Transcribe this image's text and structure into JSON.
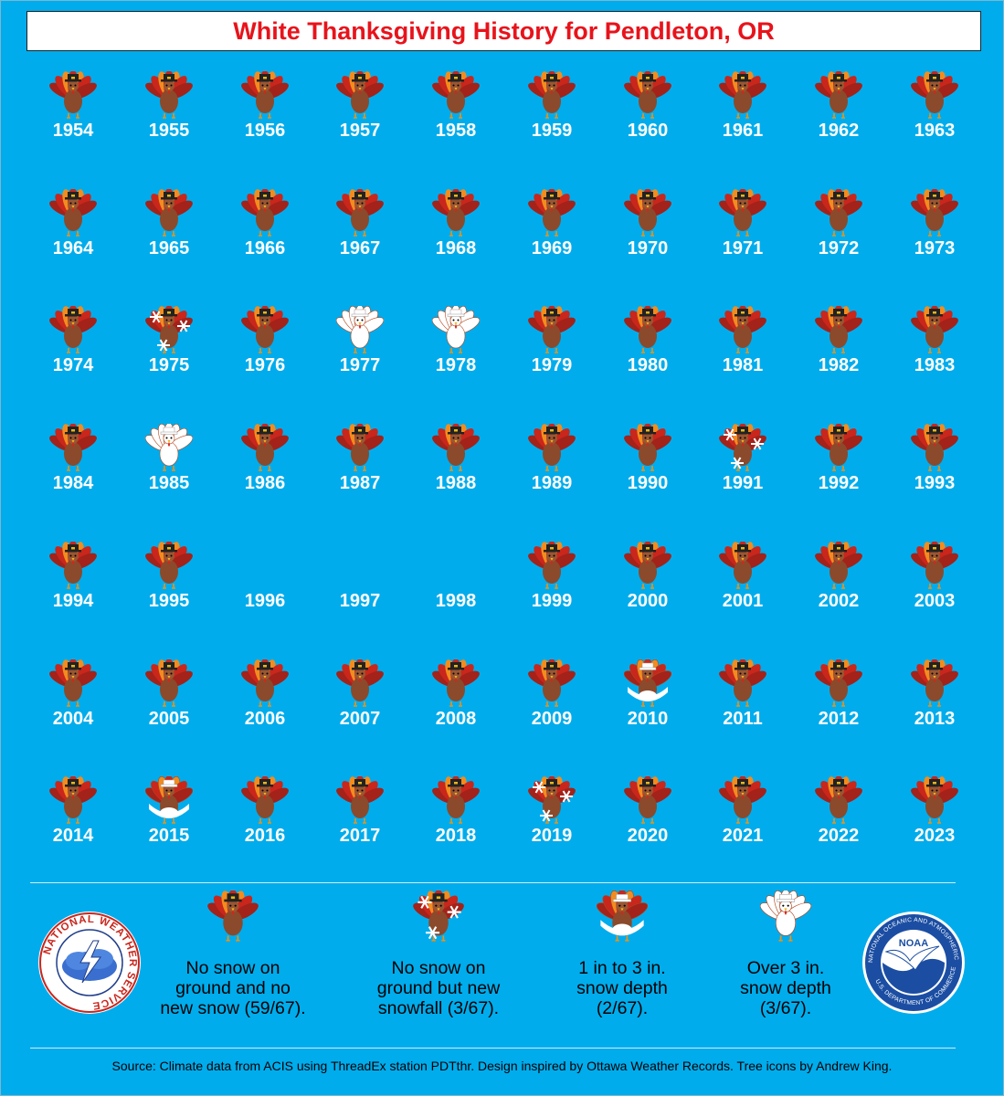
{
  "title": "White Thanksgiving History for Pendleton, OR",
  "colors": {
    "background": "#00acec",
    "title": "#e8131b",
    "turkey_body": "#8b4a2b",
    "feather_red": "#c9261c",
    "feather_orange": "#f28c1e",
    "snow": "#ffffff"
  },
  "years": [
    {
      "year": "1954",
      "category": "none"
    },
    {
      "year": "1955",
      "category": "none"
    },
    {
      "year": "1956",
      "category": "none"
    },
    {
      "year": "1957",
      "category": "none"
    },
    {
      "year": "1958",
      "category": "none"
    },
    {
      "year": "1959",
      "category": "none"
    },
    {
      "year": "1960",
      "category": "none"
    },
    {
      "year": "1961",
      "category": "none"
    },
    {
      "year": "1962",
      "category": "none"
    },
    {
      "year": "1963",
      "category": "none"
    },
    {
      "year": "1964",
      "category": "none"
    },
    {
      "year": "1965",
      "category": "none"
    },
    {
      "year": "1966",
      "category": "none"
    },
    {
      "year": "1967",
      "category": "none"
    },
    {
      "year": "1968",
      "category": "none"
    },
    {
      "year": "1969",
      "category": "none"
    },
    {
      "year": "1970",
      "category": "none"
    },
    {
      "year": "1971",
      "category": "none"
    },
    {
      "year": "1972",
      "category": "none"
    },
    {
      "year": "1973",
      "category": "none"
    },
    {
      "year": "1974",
      "category": "none"
    },
    {
      "year": "1975",
      "category": "snowfall"
    },
    {
      "year": "1976",
      "category": "none"
    },
    {
      "year": "1977",
      "category": "over3"
    },
    {
      "year": "1978",
      "category": "over3"
    },
    {
      "year": "1979",
      "category": "none"
    },
    {
      "year": "1980",
      "category": "none"
    },
    {
      "year": "1981",
      "category": "none"
    },
    {
      "year": "1982",
      "category": "none"
    },
    {
      "year": "1983",
      "category": "none"
    },
    {
      "year": "1984",
      "category": "none"
    },
    {
      "year": "1985",
      "category": "over3"
    },
    {
      "year": "1986",
      "category": "none"
    },
    {
      "year": "1987",
      "category": "none"
    },
    {
      "year": "1988",
      "category": "none"
    },
    {
      "year": "1989",
      "category": "none"
    },
    {
      "year": "1990",
      "category": "none"
    },
    {
      "year": "1991",
      "category": "snowfall"
    },
    {
      "year": "1992",
      "category": "none"
    },
    {
      "year": "1993",
      "category": "none"
    },
    {
      "year": "1994",
      "category": "none"
    },
    {
      "year": "1995",
      "category": "none"
    },
    {
      "year": "1996",
      "category": "missing"
    },
    {
      "year": "1997",
      "category": "missing"
    },
    {
      "year": "1998",
      "category": "missing"
    },
    {
      "year": "1999",
      "category": "none"
    },
    {
      "year": "2000",
      "category": "none"
    },
    {
      "year": "2001",
      "category": "none"
    },
    {
      "year": "2002",
      "category": "none"
    },
    {
      "year": "2003",
      "category": "none"
    },
    {
      "year": "2004",
      "category": "none"
    },
    {
      "year": "2005",
      "category": "none"
    },
    {
      "year": "2006",
      "category": "none"
    },
    {
      "year": "2007",
      "category": "none"
    },
    {
      "year": "2008",
      "category": "none"
    },
    {
      "year": "2009",
      "category": "none"
    },
    {
      "year": "2010",
      "category": "depth1to3"
    },
    {
      "year": "2011",
      "category": "none"
    },
    {
      "year": "2012",
      "category": "none"
    },
    {
      "year": "2013",
      "category": "none"
    },
    {
      "year": "2014",
      "category": "none"
    },
    {
      "year": "2015",
      "category": "depth1to3"
    },
    {
      "year": "2016",
      "category": "none"
    },
    {
      "year": "2017",
      "category": "none"
    },
    {
      "year": "2018",
      "category": "none"
    },
    {
      "year": "2019",
      "category": "snowfall"
    },
    {
      "year": "2020",
      "category": "none"
    },
    {
      "year": "2021",
      "category": "none"
    },
    {
      "year": "2022",
      "category": "none"
    },
    {
      "year": "2023",
      "category": "none"
    }
  ],
  "legend": {
    "none": {
      "line1": "No snow on",
      "line2": "ground and no",
      "line3": "new snow (59/67)."
    },
    "snowfall": {
      "line1": "No snow on",
      "line2": "ground but new",
      "line3": "snowfall (3/67)."
    },
    "depth1to3": {
      "line1": "1 in to 3 in.",
      "line2": "snow depth",
      "line3": "(2/67)."
    },
    "over3": {
      "line1": "Over 3 in.",
      "line2": "snow depth",
      "line3": "(3/67)."
    }
  },
  "logos": {
    "nws": {
      "text": "NATIONAL WEATHER SERVICE",
      "icon": "nws-logo"
    },
    "noaa": {
      "text": "NATIONAL OCEANIC AND ATMOSPHERIC ADMINISTRATION",
      "bottom_text": "U.S. DEPARTMENT OF COMMERCE",
      "center": "NOAA",
      "icon": "noaa-logo"
    }
  },
  "source": "Source: Climate data from ACIS using ThreadEx station PDTthr. Design inspired by Ottawa Weather Records. Tree icons by Andrew King."
}
